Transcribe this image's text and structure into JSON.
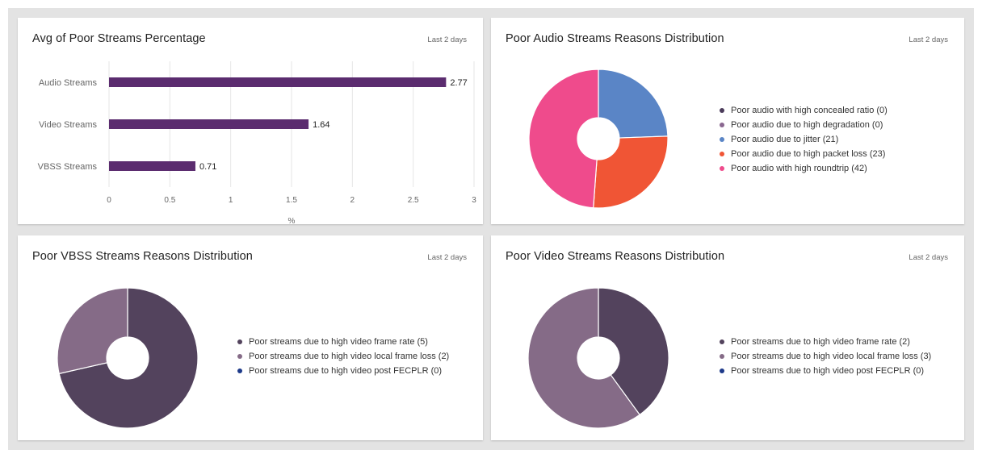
{
  "dashboard": {
    "cards": [
      {
        "title": "Avg of Poor Streams Percentage",
        "range_label": "Last 2 days"
      },
      {
        "title": "Poor Audio Streams Reasons Distribution",
        "range_label": "Last 2 days"
      },
      {
        "title": "Poor VBSS Streams Reasons Distribution",
        "range_label": "Last 2 days"
      },
      {
        "title": "Poor Video Streams Reasons Distribution",
        "range_label": "Last 2 days"
      }
    ]
  },
  "chart_data": [
    {
      "type": "bar",
      "orientation": "horizontal",
      "title": "Avg of Poor Streams Percentage",
      "categories": [
        "Audio Streams",
        "Video Streams",
        "VBSS Streams"
      ],
      "values": [
        2.77,
        1.64,
        0.71
      ],
      "value_labels": [
        "2.77",
        "1.64",
        "0.71"
      ],
      "xlabel": "%",
      "ylabel": "",
      "xlim": [
        0,
        3
      ],
      "xticks": [
        "0",
        "0.5",
        "1",
        "1.5",
        "2",
        "2.5",
        "3"
      ],
      "grid": true,
      "color": "#5b2c6f"
    },
    {
      "type": "pie",
      "donut": true,
      "title": "Poor Audio Streams Reasons Distribution",
      "legend_position": "right",
      "slices": [
        {
          "label": "Poor audio with high concealed ratio (0)",
          "value": 0,
          "color": "#4b3b5a"
        },
        {
          "label": "Poor audio due to high degradation (0)",
          "value": 0,
          "color": "#8a6790"
        },
        {
          "label": "Poor audio due to jitter (21)",
          "value": 21,
          "color": "#5a85c6"
        },
        {
          "label": "Poor audio due to high packet loss (23)",
          "value": 23,
          "color": "#f05535"
        },
        {
          "label": "Poor audio with high roundtrip (42)",
          "value": 42,
          "color": "#ef4b8c"
        }
      ]
    },
    {
      "type": "pie",
      "donut": true,
      "title": "Poor VBSS Streams Reasons Distribution",
      "legend_position": "right",
      "slices": [
        {
          "label": "Poor streams due to high video frame rate (5)",
          "value": 5,
          "color": "#53435d"
        },
        {
          "label": "Poor streams due to high video local frame loss (2)",
          "value": 2,
          "color": "#856b87"
        },
        {
          "label": "Poor streams due to high video post FECPLR (0)",
          "value": 0,
          "color": "#1e3a8a"
        }
      ]
    },
    {
      "type": "pie",
      "donut": true,
      "title": "Poor Video Streams Reasons Distribution",
      "legend_position": "right",
      "slices": [
        {
          "label": "Poor streams due to high video frame rate (2)",
          "value": 2,
          "color": "#53435d"
        },
        {
          "label": "Poor streams due to high video local frame loss (3)",
          "value": 3,
          "color": "#856b87"
        },
        {
          "label": "Poor streams due to high video post FECPLR (0)",
          "value": 0,
          "color": "#1e3a8a"
        }
      ]
    }
  ]
}
